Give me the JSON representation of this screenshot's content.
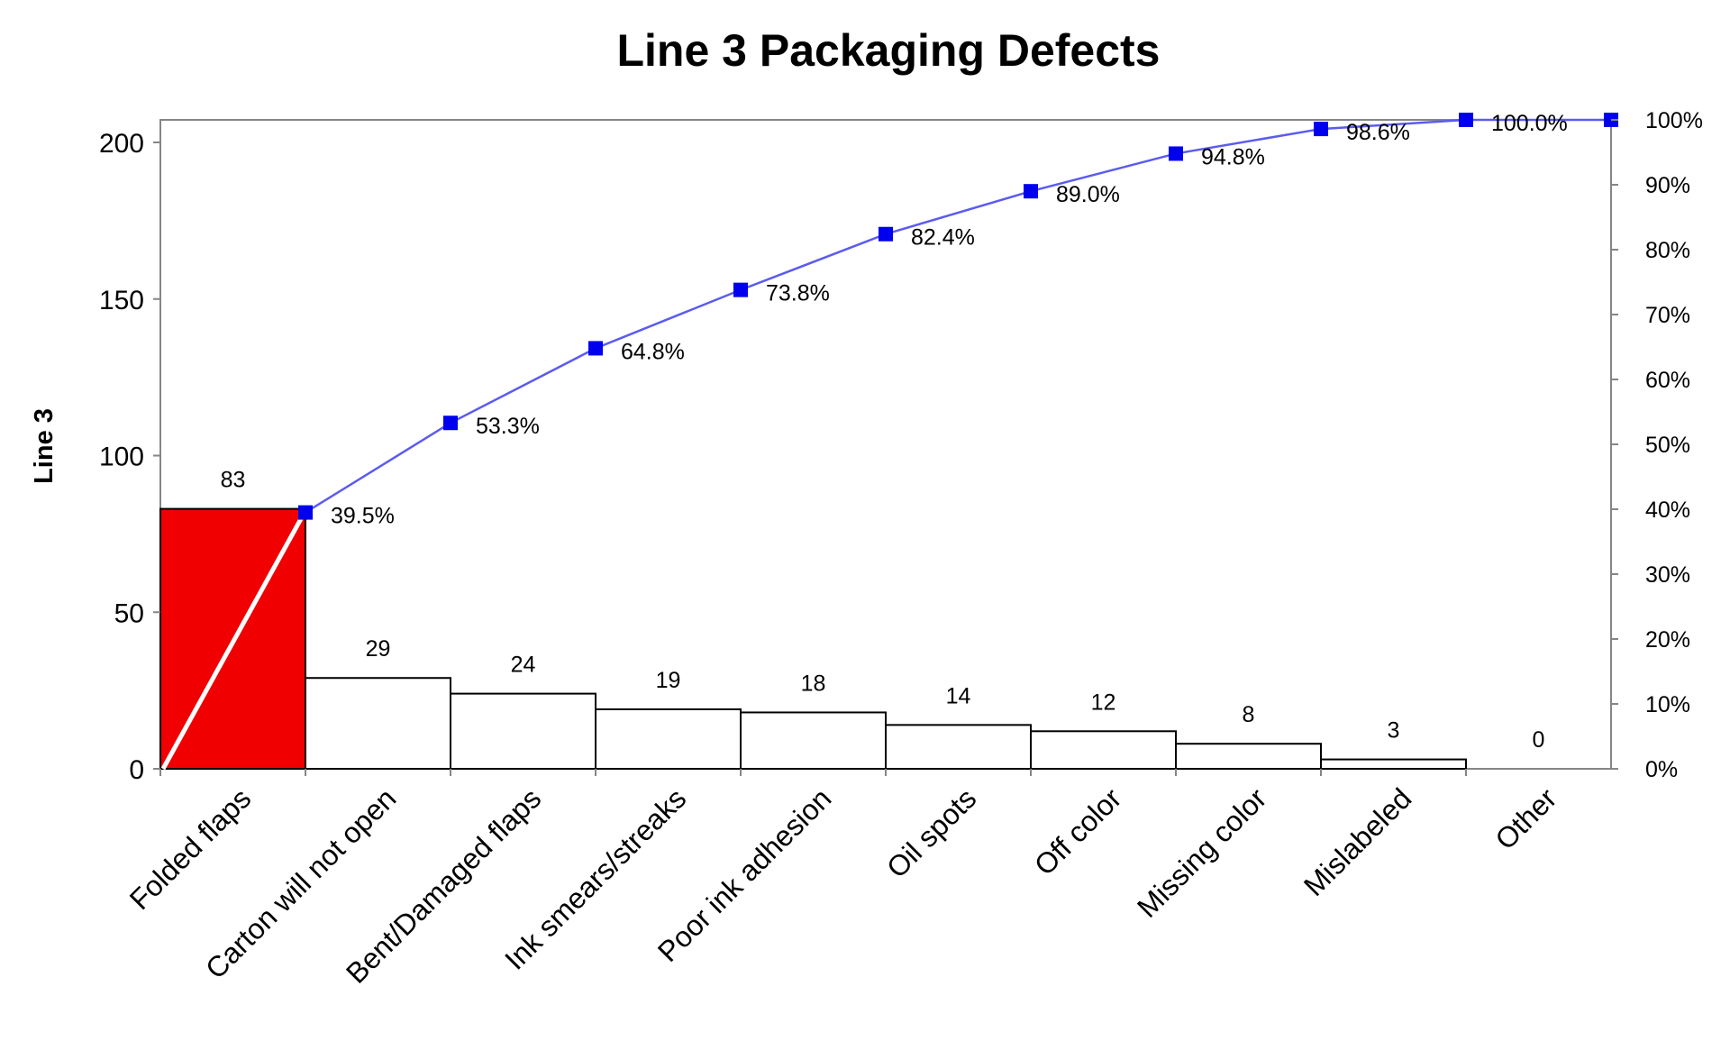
{
  "chart_data": {
    "type": "bar",
    "title": "Line 3 Packaging Defects",
    "ylabel": "Line 3",
    "xlabel": "",
    "ylim": [
      0,
      210
    ],
    "y_ticks": [
      0,
      50,
      100,
      150,
      200
    ],
    "y2lim": [
      0,
      100
    ],
    "y2_ticks": [
      "0%",
      "10%",
      "20%",
      "30%",
      "40%",
      "50%",
      "60%",
      "70%",
      "80%",
      "90%",
      "100%"
    ],
    "categories": [
      "Folded flaps",
      "Carton will not open",
      "Bent/Damaged flaps",
      "Ink smears/streaks",
      "Poor ink adhesion",
      "Oil spots",
      "Off color",
      "Missing color",
      "Mislabeled",
      "Other"
    ],
    "series": [
      {
        "type": "bar",
        "values": [
          83,
          29,
          24,
          19,
          18,
          14,
          12,
          8,
          3,
          0
        ],
        "labels": [
          "83",
          "29",
          "24",
          "19",
          "18",
          "14",
          "12",
          "8",
          "3",
          "0"
        ],
        "highlight_index": 0
      },
      {
        "type": "line",
        "axis": "secondary",
        "values": [
          39.5,
          53.3,
          64.8,
          73.8,
          82.4,
          89.0,
          94.8,
          98.6,
          100.0,
          100.0
        ],
        "labels": [
          "39.5%",
          "53.3%",
          "64.8%",
          "73.8%",
          "82.4%",
          "89.0%",
          "94.8%",
          "98.6%",
          "100.0%",
          ""
        ]
      }
    ],
    "colors": {
      "highlight_bar": "#f00000",
      "bar_fill": "#ffffff",
      "bar_stroke": "#000000",
      "line": "#5b5bf0",
      "marker": "#0000ee",
      "diagonal": "#ffffff"
    },
    "grid": false,
    "legend": "none"
  }
}
